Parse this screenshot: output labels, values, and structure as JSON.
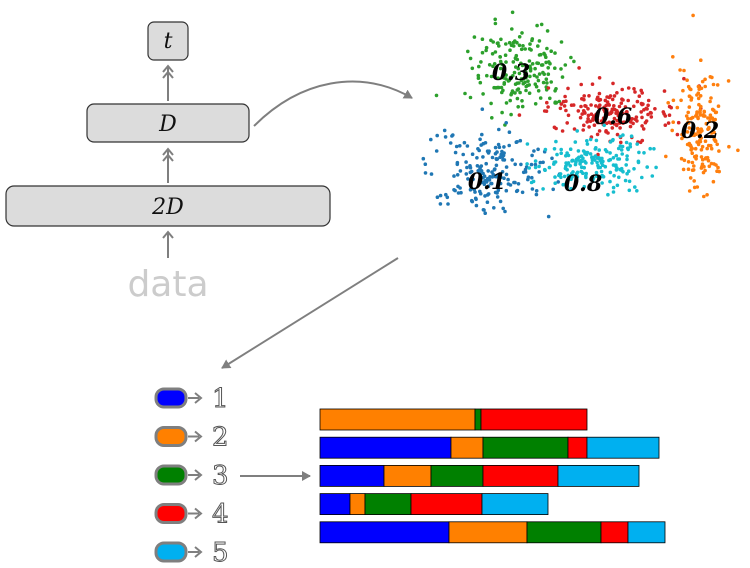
{
  "network": {
    "output_label": "t",
    "hidden_label": "D",
    "input_layer_label": "2D",
    "data_label": "data"
  },
  "clusters": [
    {
      "label": "0.3",
      "color": "#2ca02c"
    },
    {
      "label": "0.6",
      "color": "#d62728"
    },
    {
      "label": "0.2",
      "color": "#ff7f0e"
    },
    {
      "label": "0.1",
      "color": "#1f77b4"
    },
    {
      "label": "0.8",
      "color": "#17becf"
    }
  ],
  "legend": [
    {
      "number": "1",
      "color": "#0000ff"
    },
    {
      "number": "2",
      "color": "#ff8000"
    },
    {
      "number": "3",
      "color": "#008000"
    },
    {
      "number": "4",
      "color": "#ff0000"
    },
    {
      "number": "5",
      "color": "#00b0f0"
    }
  ],
  "stacked_rows": [
    [
      {
        "c": 2,
        "v": 155
      },
      {
        "c": 3,
        "v": 6
      },
      {
        "c": 4,
        "v": 106
      }
    ],
    [
      {
        "c": 1,
        "v": 131
      },
      {
        "c": 2,
        "v": 32
      },
      {
        "c": 3,
        "v": 85
      },
      {
        "c": 4,
        "v": 19
      },
      {
        "c": 5,
        "v": 72
      }
    ],
    [
      {
        "c": 1,
        "v": 64
      },
      {
        "c": 2,
        "v": 47
      },
      {
        "c": 3,
        "v": 52
      },
      {
        "c": 4,
        "v": 75
      },
      {
        "c": 5,
        "v": 81
      }
    ],
    [
      {
        "c": 1,
        "v": 30
      },
      {
        "c": 2,
        "v": 15
      },
      {
        "c": 3,
        "v": 46
      },
      {
        "c": 4,
        "v": 71
      },
      {
        "c": 5,
        "v": 66
      }
    ],
    [
      {
        "c": 1,
        "v": 129
      },
      {
        "c": 2,
        "v": 78
      },
      {
        "c": 3,
        "v": 74
      },
      {
        "c": 4,
        "v": 27
      },
      {
        "c": 5,
        "v": 37
      }
    ]
  ]
}
